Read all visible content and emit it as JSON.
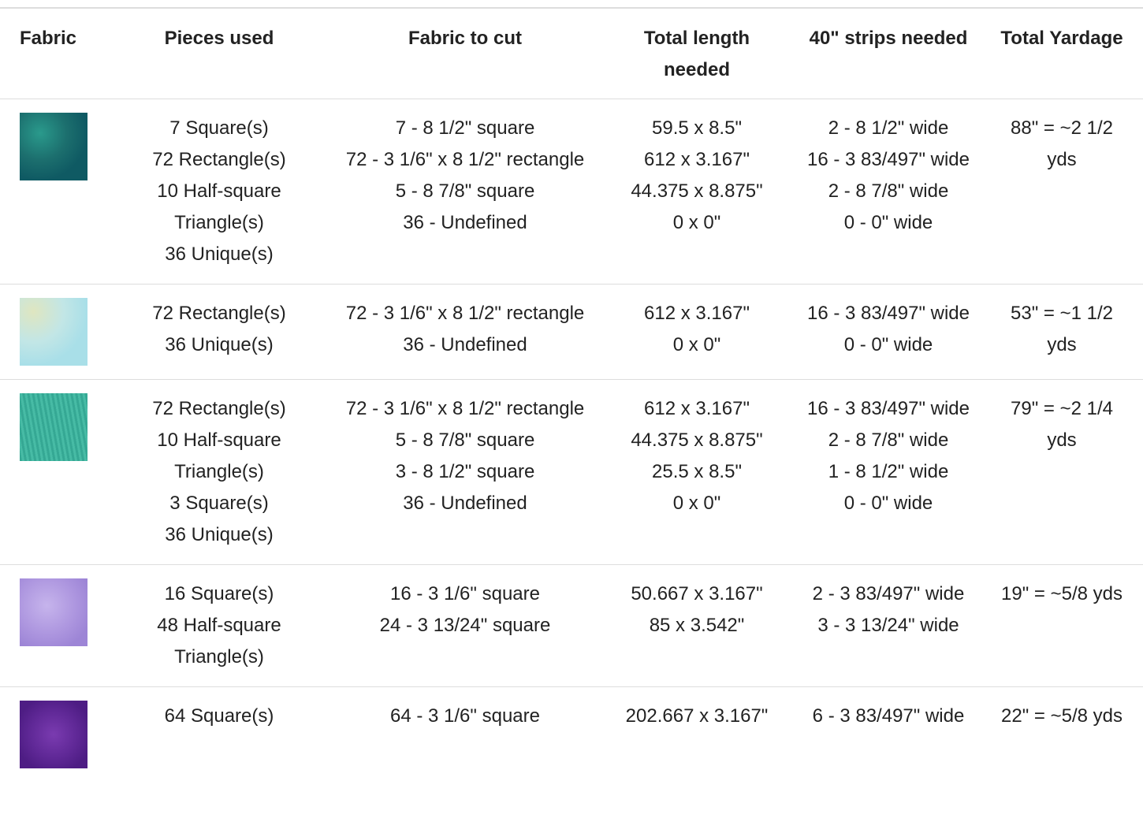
{
  "table": {
    "headers": [
      "Fabric",
      "Pieces used",
      "Fabric to cut",
      "Total length needed",
      "40\" strips needed",
      "Total Yardage"
    ],
    "rows": [
      {
        "pieces": [
          "7 Square(s)",
          "72 Rectangle(s)",
          "10 Half-square Triangle(s)",
          "36 Unique(s)"
        ],
        "cut": [
          "7 - 8 1/2\" square",
          "72 - 3 1/6\" x 8 1/2\" rectangle",
          "5 - 8 7/8\" square",
          "36 - Undefined"
        ],
        "length": [
          "59.5 x 8.5\"",
          "612 x 3.167\"",
          "44.375 x 8.875\"",
          "0 x 0\""
        ],
        "strips": [
          "2 - 8 1/2\" wide",
          "16 - 3 83/497\" wide",
          "2 - 8 7/8\" wide",
          "0 - 0\" wide"
        ],
        "yardage": "88\" = ~2 1/2 yds"
      },
      {
        "pieces": [
          "72 Rectangle(s)",
          "36 Unique(s)"
        ],
        "cut": [
          "72 - 3 1/6\" x 8 1/2\" rectangle",
          "36 - Undefined"
        ],
        "length": [
          "612 x 3.167\"",
          "0 x 0\""
        ],
        "strips": [
          "16 - 3 83/497\" wide",
          "0 - 0\" wide"
        ],
        "yardage": "53\" = ~1 1/2 yds"
      },
      {
        "pieces": [
          "72 Rectangle(s)",
          "10 Half-square Triangle(s)",
          "3 Square(s)",
          "36 Unique(s)"
        ],
        "cut": [
          "72 - 3 1/6\" x 8 1/2\" rectangle",
          "5 - 8 7/8\" square",
          "3 - 8 1/2\" square",
          "36 - Undefined"
        ],
        "length": [
          "612 x 3.167\"",
          "44.375 x 8.875\"",
          "25.5 x 8.5\"",
          "0 x 0\""
        ],
        "strips": [
          "16 - 3 83/497\" wide",
          "2 - 8 7/8\" wide",
          "1 - 8 1/2\" wide",
          "0 - 0\" wide"
        ],
        "yardage": "79\" = ~2 1/4 yds"
      },
      {
        "pieces": [
          "16 Square(s)",
          "48 Half-square Triangle(s)"
        ],
        "cut": [
          "16 - 3 1/6\" square",
          "24 - 3 13/24\" square"
        ],
        "length": [
          "50.667 x 3.167\"",
          "85 x 3.542\""
        ],
        "strips": [
          "2 - 3 83/497\" wide",
          "3 - 3 13/24\" wide"
        ],
        "yardage": "19\" = ~5/8 yds"
      },
      {
        "pieces": [
          "64 Square(s)"
        ],
        "cut": [
          "64 - 3 1/6\" square"
        ],
        "length": [
          "202.667 x 3.167\""
        ],
        "strips": [
          "6 - 3 83/497\" wide"
        ],
        "yardage": "22\" = ~5/8 yds"
      }
    ]
  }
}
